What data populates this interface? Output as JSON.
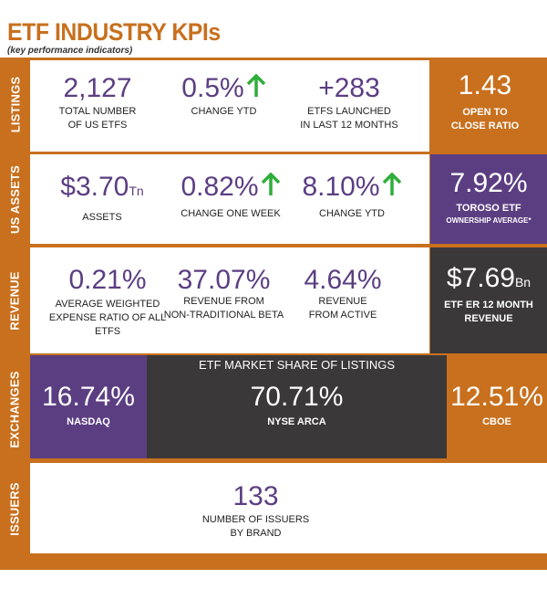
{
  "header": {
    "title": "ETF INDUSTRY  KPIs",
    "subtitle": "(key performance indicators)"
  },
  "colors": {
    "orange": "#c8701e",
    "purple": "#5b3e82",
    "dark": "#3a3838",
    "green": "#2eae3a"
  },
  "listings": {
    "side_label": "LISTINGS",
    "total": {
      "value": "2,127",
      "label1": "TOTAL NUMBER",
      "label2": "OF  US ETFs"
    },
    "change": {
      "value": "0.5%",
      "label": "CHANGE YTD",
      "icon": "arrow-up-icon"
    },
    "launched": {
      "value": "+283",
      "label1": "ETFs LAUNCHED",
      "label2": "IN LAST 12 MONTHS"
    },
    "ratio": {
      "value": "1.43",
      "label1": "OPEN TO",
      "label2": "CLOSE RATIO"
    }
  },
  "assets": {
    "side_label": "US ASSETS",
    "assets": {
      "value": "$3.70",
      "unit": "Tn",
      "label": "ASSETS"
    },
    "week": {
      "value": "0.82%",
      "label": "CHANGE ONE WEEK",
      "icon": "arrow-up-icon"
    },
    "ytd": {
      "value": "8.10%",
      "label": "CHANGE YTD",
      "icon": "arrow-up-icon"
    },
    "toroso": {
      "value": "7.92%",
      "label1": "TOROSO ETF",
      "label2": "OWNERSHIP AVERAGE*"
    }
  },
  "revenue": {
    "side_label": "REVENUE",
    "expense": {
      "value": "0.21%",
      "label1": "AVERAGE WEIGHTED",
      "label2": "EXPENSE RATIO OF ALL",
      "label3": "ETFS"
    },
    "beta": {
      "value": "37.07%",
      "label1": "REVENUE FROM",
      "label2": "NON-TRADITIONAL BETA"
    },
    "active": {
      "value": "4.64%",
      "label1": "REVENUE",
      "label2": "FROM ACTIVE"
    },
    "total": {
      "value": "$7.69",
      "unit": "Bn",
      "label1": "ETF ER 12 MONTH",
      "label2": "REVENUE"
    }
  },
  "exchanges": {
    "side_label": "EXCHANGES",
    "heading": "ETF MARKET SHARE OF LISTINGS",
    "nasdaq": {
      "value": "16.74%",
      "label": "NASDAQ"
    },
    "nyse": {
      "value": "70.71%",
      "label": "NYSE ARCA"
    },
    "cboe": {
      "value": "12.51%",
      "label": "CBOE"
    }
  },
  "issuers": {
    "side_label": "ISSUERS",
    "count": {
      "value": "133",
      "label1": "NUMBER OF ISSUERS",
      "label2": "BY BRAND"
    }
  }
}
